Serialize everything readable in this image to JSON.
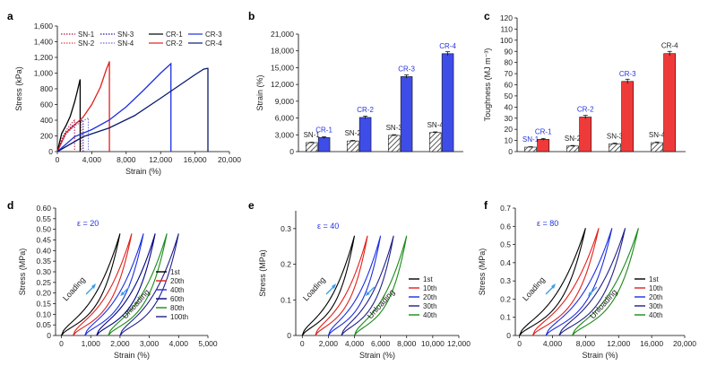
{
  "chart_data": [
    {
      "panel": "a",
      "type": "line",
      "xlabel": "Strain (%)",
      "ylabel": "Stress (kPa)",
      "xlim": [
        0,
        20000
      ],
      "ylim": [
        0,
        1600
      ],
      "xticks": [
        0,
        4000,
        8000,
        12000,
        16000,
        20000
      ],
      "xtick_labels": [
        "0",
        "4,000",
        "8,000",
        "12,000",
        "16,000",
        "20,000"
      ],
      "yticks": [
        0,
        200,
        400,
        600,
        800,
        1000,
        1200,
        1400,
        1600
      ],
      "ytick_labels": [
        "0",
        "200",
        "400",
        "600",
        "800",
        "1,000",
        "1,200",
        "1,400",
        "1,600"
      ],
      "series": [
        {
          "name": "SN-1",
          "color": "#b5123f",
          "style": "dotted",
          "x": [
            0,
            600,
            1200,
            1800,
            2000
          ],
          "y": [
            0,
            190,
            300,
            380,
            400
          ]
        },
        {
          "name": "SN-2",
          "color": "#e8413a",
          "style": "dotted",
          "x": [
            0,
            800,
            1600,
            2400,
            2800
          ],
          "y": [
            0,
            200,
            300,
            380,
            410
          ]
        },
        {
          "name": "SN-3",
          "color": "#1a1aa0",
          "style": "dotted",
          "x": [
            0,
            800,
            1600,
            2400,
            3000
          ],
          "y": [
            0,
            210,
            320,
            380,
            400
          ]
        },
        {
          "name": "SN-4",
          "color": "#6a6ad8",
          "style": "dotted",
          "x": [
            0,
            1000,
            2000,
            3000,
            3600
          ],
          "y": [
            0,
            220,
            330,
            390,
            430
          ]
        },
        {
          "name": "CR-1",
          "color": "#000000",
          "style": "solid",
          "x": [
            0,
            500,
            1000,
            1500,
            2000,
            2300,
            2600,
            2650
          ],
          "y": [
            0,
            230,
            330,
            450,
            630,
            760,
            900,
            920
          ]
        },
        {
          "name": "CR-2",
          "color": "#e0201b",
          "style": "solid",
          "x": [
            0,
            1000,
            2000,
            3000,
            4000,
            5000,
            5700,
            6000,
            6050
          ],
          "y": [
            0,
            240,
            340,
            440,
            600,
            820,
            1050,
            1130,
            1150
          ]
        },
        {
          "name": "CR-3",
          "color": "#1c2fe0",
          "style": "solid",
          "x": [
            0,
            2000,
            4000,
            6000,
            8000,
            10000,
            12000,
            13000,
            13200
          ],
          "y": [
            0,
            190,
            280,
            400,
            570,
            780,
            1000,
            1100,
            1120
          ]
        },
        {
          "name": "CR-4",
          "color": "#0a1a70",
          "style": "solid",
          "x": [
            0,
            3000,
            6000,
            9000,
            12000,
            14000,
            16000,
            17000,
            17400,
            17500
          ],
          "y": [
            0,
            190,
            300,
            460,
            680,
            830,
            980,
            1050,
            1060,
            1060
          ]
        }
      ],
      "legend": [
        "SN-1",
        "SN-2",
        "SN-3",
        "SN-4",
        "CR-1",
        "CR-2",
        "CR-3",
        "CR-4"
      ]
    },
    {
      "panel": "b",
      "type": "bar",
      "xlabel": "",
      "ylabel": "Strain (%)",
      "ylim": [
        0,
        21000
      ],
      "yticks": [
        0,
        3000,
        6000,
        9000,
        12000,
        15000,
        18000,
        21000
      ],
      "ytick_labels": [
        "0",
        "3,000",
        "6,000",
        "9,000",
        "12,000",
        "15,000",
        "18,000",
        "21,000"
      ],
      "categories": [
        "SN-1",
        "CR-1",
        "SN-2",
        "CR-2",
        "SN-3",
        "CR-3",
        "SN-4",
        "CR-4"
      ],
      "values": [
        1600,
        2500,
        1900,
        6100,
        2900,
        13400,
        3400,
        17500
      ],
      "errors": [
        80,
        150,
        100,
        250,
        120,
        300,
        120,
        350
      ],
      "fills": [
        "hatch",
        "#3f4de8",
        "hatch",
        "#3f4de8",
        "hatch",
        "#3f4de8",
        "hatch",
        "#3f4de8"
      ],
      "label_colors": [
        "#222",
        "#2233dd",
        "#222",
        "#2233dd",
        "#222",
        "#2233dd",
        "#222",
        "#2233dd"
      ]
    },
    {
      "panel": "c",
      "type": "bar",
      "xlabel": "",
      "ylabel": "Toughness (MJ m⁻³)",
      "ylim": [
        0,
        120
      ],
      "yticks": [
        0,
        10,
        20,
        30,
        40,
        50,
        60,
        70,
        80,
        90,
        100,
        110,
        120
      ],
      "ytick_labels": [
        "0",
        "10",
        "20",
        "30",
        "40",
        "50",
        "60",
        "70",
        "80",
        "90",
        "100",
        "110",
        "120"
      ],
      "categories": [
        "SN-1",
        "CR-1",
        "SN-2",
        "CR-2",
        "SN-3",
        "CR-3",
        "SN-4",
        "CR-4"
      ],
      "values": [
        4,
        11,
        5,
        31,
        7,
        63,
        8,
        88
      ],
      "errors": [
        0.4,
        0.8,
        0.5,
        1.5,
        0.6,
        2,
        0.6,
        2
      ],
      "fills": [
        "hatch",
        "#ef3a3a",
        "hatch",
        "#ef3a3a",
        "hatch",
        "#ef3a3a",
        "hatch",
        "#ef3a3a"
      ],
      "label_colors": [
        "#2233dd",
        "#2233dd",
        "#222",
        "#2233dd",
        "#222",
        "#2233dd",
        "#222",
        "#222"
      ]
    },
    {
      "panel": "d",
      "type": "line",
      "xlabel": "Strain (%)",
      "ylabel": "Stress (MPa)",
      "xlim": [
        -200,
        5000
      ],
      "ylim": [
        0,
        0.6
      ],
      "xticks": [
        0,
        1000,
        2000,
        3000,
        4000,
        5000
      ],
      "xtick_labels": [
        "0",
        "1,000",
        "2,000",
        "3,000",
        "4,000",
        "5,000"
      ],
      "yticks": [
        0,
        0.05,
        0.1,
        0.15,
        0.2,
        0.25,
        0.3,
        0.35,
        0.4,
        0.45,
        0.5,
        0.55,
        0.6
      ],
      "ytick_labels": [
        "0",
        "0.05",
        "0.10",
        "0.15",
        "0.20",
        "0.25",
        "0.30",
        "0.35",
        "0.40",
        "0.45",
        "0.50",
        "0.55",
        "0.60"
      ],
      "cycles": [
        "1st",
        "20th",
        "40th",
        "60th",
        "80th",
        "100th"
      ],
      "offsets": [
        0,
        400,
        800,
        1200,
        1600,
        2000
      ],
      "span": 2000,
      "peak": 0.48,
      "hysteresis": 130,
      "colors": [
        "#000000",
        "#e0201b",
        "#1c2fe0",
        "#000080",
        "#1a8a1a",
        "#20208a"
      ],
      "epsilon_label": "ε = 20",
      "loading_label": "Loading",
      "unloading_label": "Unloading"
    },
    {
      "panel": "e",
      "type": "line",
      "xlabel": "Strain (%)",
      "ylabel": "Stress (MPa)",
      "xlim": [
        -500,
        12000
      ],
      "ylim": [
        0,
        0.35
      ],
      "xticks": [
        0,
        2000,
        4000,
        6000,
        8000,
        10000,
        12000
      ],
      "xtick_labels": [
        "0",
        "2,000",
        "4,000",
        "6,000",
        "8,000",
        "10,000",
        "12,000"
      ],
      "yticks": [
        0,
        0.1,
        0.2,
        0.3
      ],
      "ytick_labels": [
        "0",
        "0.1",
        "0.2",
        "0.3"
      ],
      "cycles": [
        "1st",
        "10th",
        "20th",
        "30th",
        "40th"
      ],
      "offsets": [
        0,
        1000,
        2000,
        3000,
        4000
      ],
      "span": 4000,
      "peak": 0.28,
      "hysteresis": 260,
      "colors": [
        "#000000",
        "#e0201b",
        "#1c2fe0",
        "#20208a",
        "#1a8a1a"
      ],
      "epsilon_label": "ε = 40",
      "loading_label": "Loading",
      "unloading_label": "Unloading"
    },
    {
      "panel": "f",
      "type": "line",
      "xlabel": "Strain (%)",
      "ylabel": "Stress (MPa)",
      "xlim": [
        -500,
        20000
      ],
      "ylim": [
        0,
        0.7
      ],
      "xticks": [
        0,
        4000,
        8000,
        12000,
        16000,
        20000
      ],
      "xtick_labels": [
        "0",
        "4,000",
        "8,000",
        "12,000",
        "16,000",
        "20,000"
      ],
      "yticks": [
        0,
        0.1,
        0.2,
        0.3,
        0.4,
        0.5,
        0.6,
        0.7
      ],
      "ytick_labels": [
        "0",
        "0.1",
        "0.2",
        "0.3",
        "0.4",
        "0.5",
        "0.6",
        "0.7"
      ],
      "cycles": [
        "1st",
        "10th",
        "20th",
        "30th",
        "40th"
      ],
      "offsets": [
        0,
        1600,
        3200,
        4800,
        6400
      ],
      "span": 8000,
      "peak": 0.59,
      "hysteresis": 500,
      "colors": [
        "#000000",
        "#e0201b",
        "#1c2fe0",
        "#20208a",
        "#1a8a1a"
      ],
      "epsilon_label": "ε = 80",
      "loading_label": "Loading",
      "unloading_label": "Unloading"
    }
  ]
}
